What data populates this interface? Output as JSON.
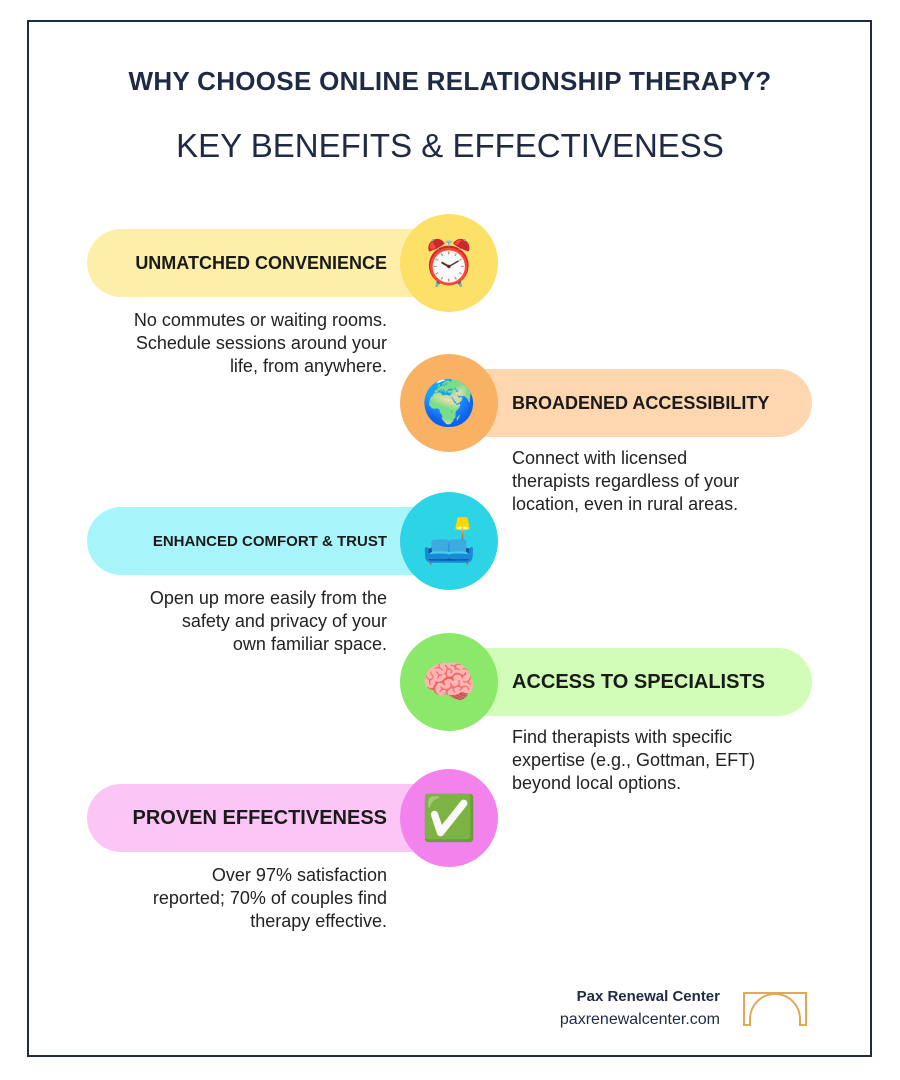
{
  "header": {
    "title": "WHY CHOOSE ONLINE RELATIONSHIP THERAPY?",
    "subtitle": "KEY BENEFITS & EFFECTIVENESS"
  },
  "benefits": [
    {
      "title": "UNMATCHED CONVENIENCE",
      "icon": "alarm-clock-icon",
      "emoji": "⏰",
      "side": "left",
      "pill_color": "#fdefaa",
      "circle_color": "#fde068",
      "desc": [
        "No commutes or waiting rooms.",
        "Schedule sessions around your",
        "life, from anywhere."
      ]
    },
    {
      "title": "BROADENED ACCESSIBILITY",
      "icon": "globe-icon",
      "emoji": "🌍",
      "side": "right",
      "pill_color": "#fed7b0",
      "circle_color": "#f9b264",
      "desc": [
        "Connect with licensed",
        "therapists regardless of your",
        "location, even in rural areas."
      ]
    },
    {
      "title": "ENHANCED COMFORT & TRUST",
      "icon": "couch-lamp-icon",
      "emoji": "🛋️",
      "side": "left",
      "pill_color": "#a7f5fb",
      "circle_color": "#2dd4e6",
      "desc": [
        "Open up more easily from the",
        "safety and privacy of your",
        "own familiar space."
      ]
    },
    {
      "title": "ACCESS TO SPECIALISTS",
      "icon": "brain-icon",
      "emoji": "🧠",
      "side": "right",
      "pill_color": "#d2fdb8",
      "circle_color": "#8ce86a",
      "desc": [
        "Find therapists with specific",
        "expertise (e.g., Gottman, EFT)",
        "beyond local options."
      ]
    },
    {
      "title": "PROVEN EFFECTIVENESS",
      "icon": "check-mark-icon",
      "emoji": "✅",
      "side": "left",
      "pill_color": "#fbc6f5",
      "circle_color": "#f283ec",
      "desc": [
        "Over 97% satisfaction",
        "reported; 70% of couples find",
        "therapy effective."
      ]
    }
  ],
  "footer": {
    "name": "Pax Renewal Center",
    "url": "paxrenewalcenter.com",
    "logo_color": "#e0a95a"
  }
}
